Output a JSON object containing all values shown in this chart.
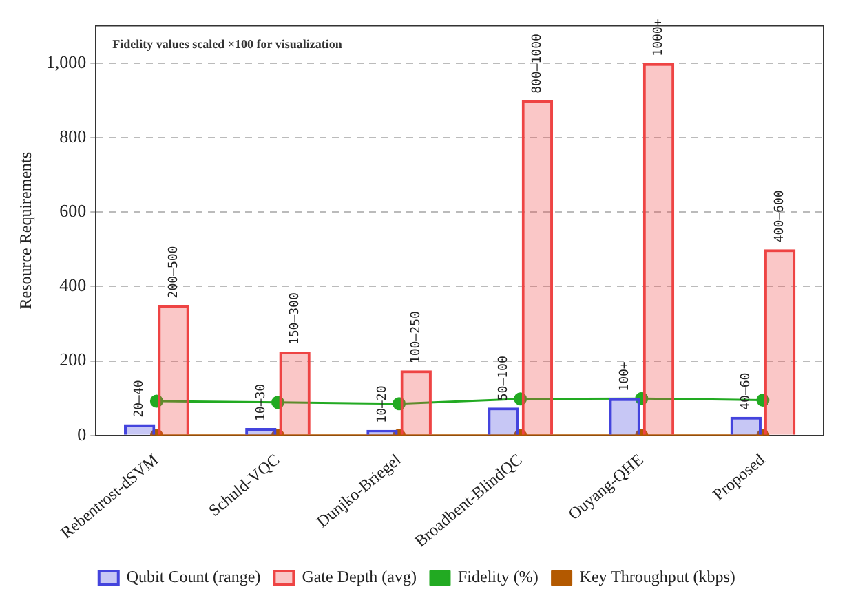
{
  "chart_data": {
    "type": "bar",
    "ylabel": "Resource Requirements",
    "categories": [
      "Rebentrost-dSVM",
      "Schuld-VQC",
      "Dunjko-Briegel",
      "Broadbent-BlindQC",
      "Ouyang-QHE",
      "Proposed"
    ],
    "series": [
      {
        "name": "Qubit Count (range)",
        "color": "#4444dd",
        "values": [
          30,
          20,
          15,
          75,
          100,
          50
        ],
        "value_labels": [
          "20–40",
          "10–30",
          "10–20",
          "50–100",
          "100+",
          "40–60"
        ]
      },
      {
        "name": "Gate Depth (avg)",
        "color": "#ee4444",
        "values": [
          350,
          225,
          175,
          900,
          1000,
          500
        ],
        "value_labels": [
          "200–500",
          "150–300",
          "100–250",
          "800–1000",
          "1000+",
          "400–600"
        ]
      },
      {
        "name": "Fidelity (%)",
        "type": "line",
        "color": "#22aa22",
        "values": [
          92,
          89,
          85,
          98,
          99,
          95
        ],
        "marker": "circle"
      },
      {
        "name": "Key Throughput (kbps)",
        "type": "line",
        "color": "#b35900",
        "values": [
          0,
          0,
          0,
          0,
          0,
          0
        ],
        "marker": "circle",
        "line_style": "solid"
      }
    ],
    "ylim": [
      0,
      1100
    ],
    "yticks": [
      0,
      200,
      400,
      600,
      800,
      {
        "value": 1000,
        "label": "1,000"
      }
    ],
    "grid": "y",
    "legend": "bottom",
    "annotations": [
      "Fidelity values scaled ×100 for visualization"
    ]
  }
}
